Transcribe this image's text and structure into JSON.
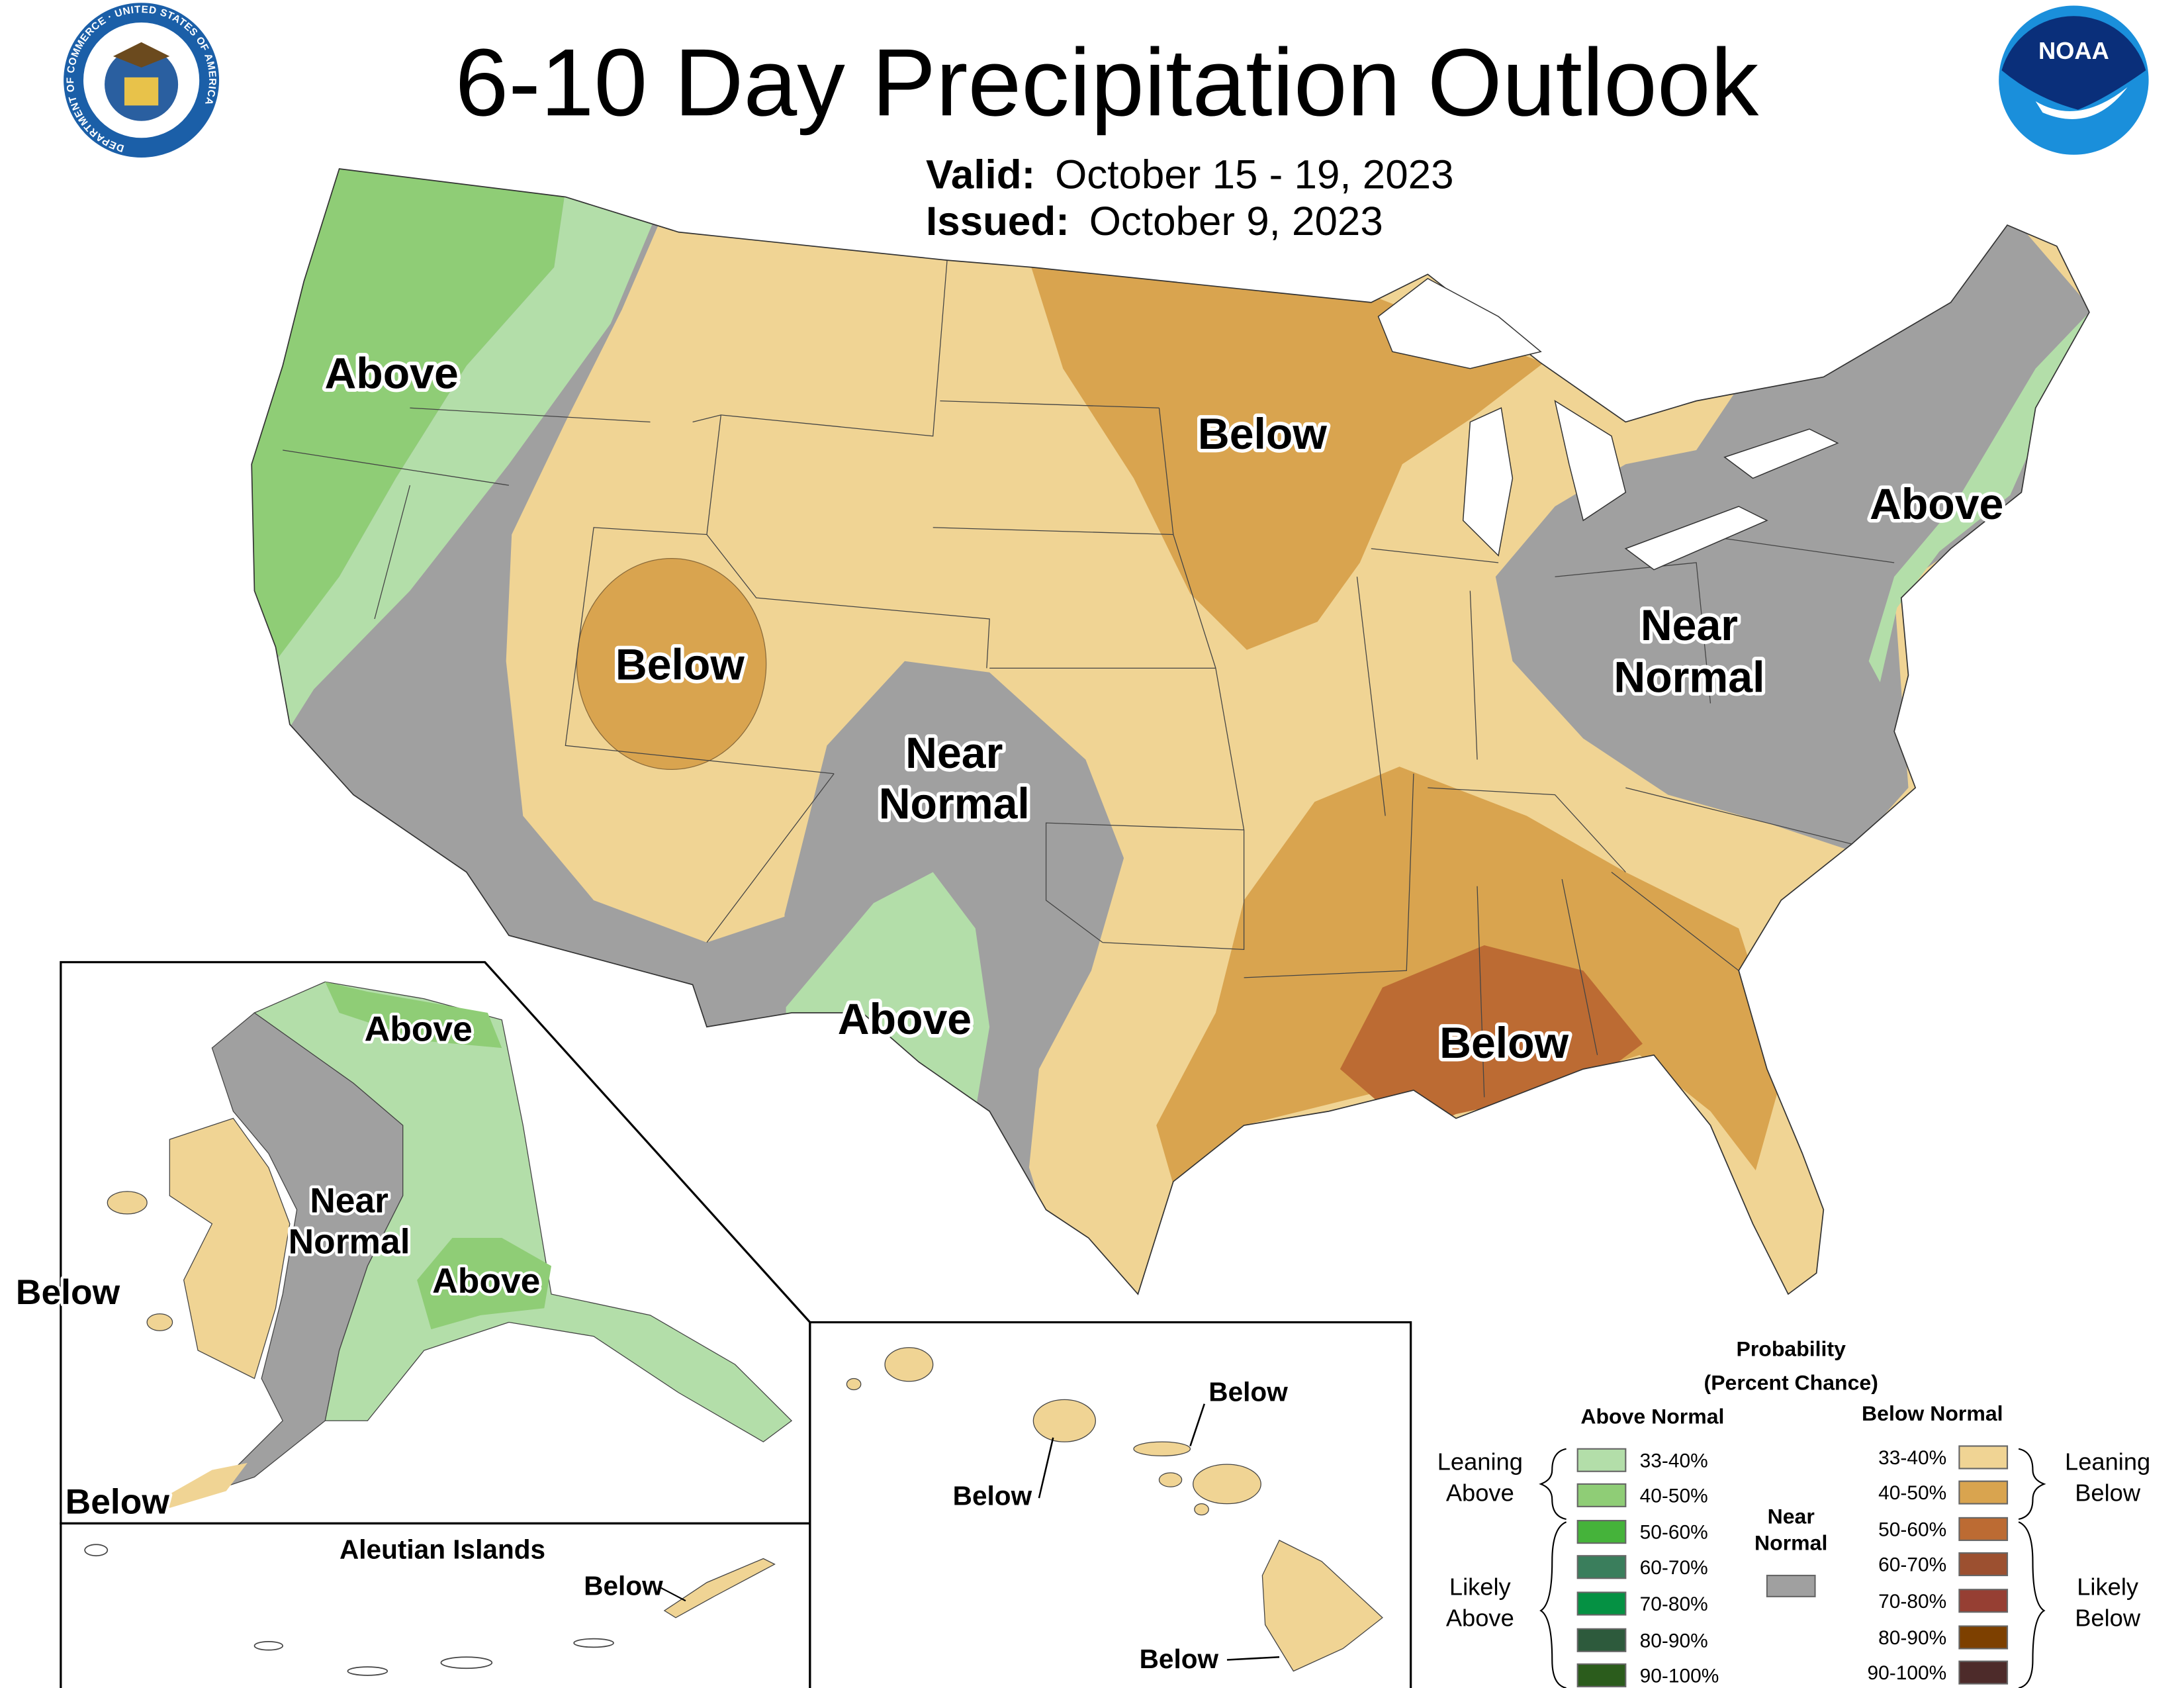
{
  "header": {
    "title": "6-10 Day Precipitation Outlook",
    "valid_label": "Valid:",
    "valid_value": "October 15 - 19, 2023",
    "issued_label": "Issued:",
    "issued_value": "October 9, 2023",
    "left_logo": "US Department of Commerce seal",
    "left_logo_text": "DEPARTMENT OF COMMERCE · UNITED STATES OF AMERICA",
    "right_logo": "NOAA logo",
    "right_logo_text": "NOAA"
  },
  "conus_labels": {
    "nw_above": "Above",
    "utah_below": "Below",
    "sw_near_1": "Near",
    "sw_near_2": "Normal",
    "tx_above": "Above",
    "north_below": "Below",
    "ne_near_1": "Near",
    "ne_near_2": "Normal",
    "ne_above": "Above",
    "gulf_below": "Below"
  },
  "alaska_labels": {
    "north_above": "Above",
    "near_1": "Near",
    "near_2": "Normal",
    "south_above": "Above",
    "west_below": "Below",
    "sw_below": "Below"
  },
  "aleutian": {
    "title": "Aleutian Islands",
    "below": "Below"
  },
  "hawaii_labels": {
    "below_1": "Below",
    "below_2": "Below",
    "below_3": "Below"
  },
  "legend": {
    "title_1": "Probability",
    "title_2": "(Percent Chance)",
    "above_header": "Above Normal",
    "below_header": "Below Normal",
    "near_1": "Near",
    "near_2": "Normal",
    "near_color": "#a0a0a0",
    "leaning_above_1": "Leaning",
    "leaning_above_2": "Above",
    "likely_above_1": "Likely",
    "likely_above_2": "Above",
    "leaning_below_1": "Leaning",
    "leaning_below_2": "Below",
    "likely_below_1": "Likely",
    "likely_below_2": "Below",
    "above": [
      {
        "range": "33-40%",
        "color": "#b3dea9"
      },
      {
        "range": "40-50%",
        "color": "#8fcd76"
      },
      {
        "range": "50-60%",
        "color": "#45b33a"
      },
      {
        "range": "60-70%",
        "color": "#3a7e5c"
      },
      {
        "range": "70-80%",
        "color": "#059143"
      },
      {
        "range": "80-90%",
        "color": "#2d5a3c"
      },
      {
        "range": "90-100%",
        "color": "#2b5c1c"
      }
    ],
    "below": [
      {
        "range": "33-40%",
        "color": "#f0d494"
      },
      {
        "range": "40-50%",
        "color": "#d9a44f"
      },
      {
        "range": "50-60%",
        "color": "#bc6b33"
      },
      {
        "range": "60-70%",
        "color": "#9c5030"
      },
      {
        "range": "70-80%",
        "color": "#963f33"
      },
      {
        "range": "80-90%",
        "color": "#7d4000"
      },
      {
        "range": "90-100%",
        "color": "#4d2b2a"
      }
    ]
  }
}
